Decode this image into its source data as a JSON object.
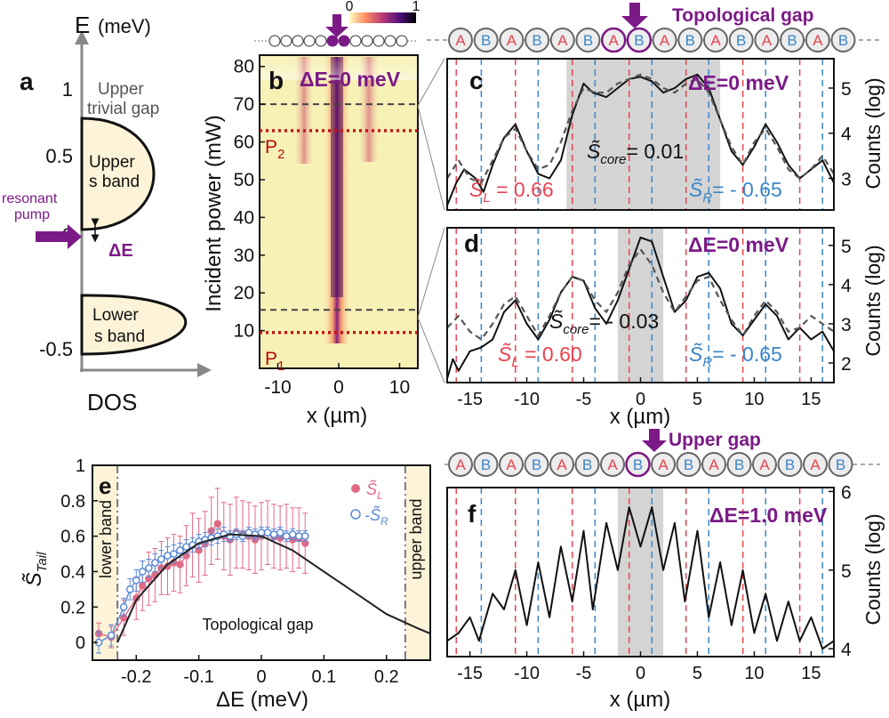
{
  "colors": {
    "purple": "#7b1a86",
    "red_site": "#e8434f",
    "blue_site": "#3a86c8",
    "band_fill": "#fdf3d8",
    "gray_box": "#d4d4d4",
    "series_L": "#e06a86",
    "series_R": "#5b8ad6",
    "heat_bg": "#f7f1b6"
  },
  "panel_a": {
    "letter": "a",
    "y_axis_label": "E",
    "y_unit": "(meV)",
    "x_axis_label": "DOS",
    "ticks": [
      "1",
      "0.5",
      "0",
      "-0.5"
    ],
    "upper_trivial_gap": [
      "Upper",
      "trivial gap"
    ],
    "upper_band": [
      "Upper",
      "s band"
    ],
    "lower_band": [
      "Lower",
      "s band"
    ],
    "pump_label": [
      "resonant",
      "pump"
    ],
    "delta_label": "ΔE",
    "chart_data": {
      "type": "diagram",
      "upper_band_meV": [
        0.22,
        0.78
      ],
      "lower_band_meV": [
        -0.48,
        -0.18
      ],
      "pump_energy_meV": 0.1
    }
  },
  "panel_b": {
    "letter": "b",
    "title": "ΔE=0 meV",
    "y_label": "Incident power (mW)",
    "x_label": "x (µm)",
    "y_ticks": [
      "10",
      "20",
      "30",
      "40",
      "50",
      "60",
      "70",
      "80"
    ],
    "x_ticks": [
      "-10",
      "0",
      "10"
    ],
    "colorbar_ticks": [
      "0",
      "1"
    ],
    "p2_label": "P",
    "p2_sub": "2",
    "p1_label": "P",
    "p1_sub": "1",
    "chart_data": {
      "type": "heatmap",
      "xlim": [
        -13,
        13
      ],
      "ylim": [
        0,
        83
      ],
      "colorbar_range": [
        0,
        1
      ],
      "P1_mW": 9.5,
      "P2_mW": 63,
      "dashed_lines_mW": [
        15.5,
        70
      ],
      "x_ticks": [
        -10,
        0,
        10
      ],
      "y_ticks": [
        10,
        20,
        30,
        40,
        50,
        60,
        70,
        80
      ]
    }
  },
  "lattice_top": {
    "labels": [
      "A",
      "B",
      "A",
      "B",
      "A",
      "B",
      "A",
      "B",
      "A",
      "B",
      "A",
      "B",
      "A",
      "B",
      "A",
      "B"
    ],
    "title": "Topological gap"
  },
  "lattice_bottom": {
    "labels": [
      "A",
      "B",
      "A",
      "B",
      "A",
      "B",
      "A",
      "B",
      "A",
      "B",
      "A",
      "B",
      "A",
      "B",
      "A",
      "B"
    ],
    "title": "Upper gap"
  },
  "panel_c": {
    "letter": "c",
    "title": "ΔE=0 meV",
    "y_label": "Counts (log)",
    "s_core": "S̃",
    "s_core_sub": "core",
    "s_core_val": "= 0.01",
    "s_L": "S̃",
    "s_L_sub": "L",
    "s_L_val": " = 0.66",
    "s_R": "S̃",
    "s_R_sub": "R",
    "s_R_val": "= - 0.65",
    "y_ticks": [
      "5",
      "4",
      "3"
    ],
    "chart_data": {
      "type": "line",
      "xlim": [
        -17,
        17
      ],
      "ylim": [
        2.3,
        5.65
      ],
      "core_region": [
        -6.5,
        7
      ],
      "series": [
        {
          "name": "experiment",
          "style": "solid",
          "x": [
            -17,
            -16.2,
            -15.5,
            -14.5,
            -13.8,
            -13,
            -12,
            -11,
            -10,
            -9,
            -8,
            -7,
            -6,
            -5,
            -4.2,
            -3,
            -2,
            -1,
            0,
            1,
            2,
            3,
            4,
            5,
            6,
            7,
            8,
            9,
            10,
            11,
            12,
            13,
            14,
            15,
            16,
            17
          ],
          "y": [
            2.4,
            2.9,
            3.2,
            3.0,
            2.7,
            3.3,
            3.9,
            4.2,
            3.6,
            3.1,
            3.0,
            3.4,
            4.4,
            5.1,
            4.9,
            4.8,
            5.0,
            5.2,
            5.25,
            5.15,
            4.9,
            5.0,
            5.2,
            5.3,
            5.0,
            4.3,
            3.6,
            3.3,
            3.7,
            4.2,
            3.8,
            3.3,
            3.0,
            3.2,
            3.4,
            2.9
          ]
        },
        {
          "name": "theory",
          "style": "dashed",
          "x": [
            -17,
            -16,
            -15,
            -14,
            -13,
            -12,
            -11,
            -10,
            -9,
            -8,
            -7,
            -6,
            -5,
            -4,
            -3,
            -2,
            -1,
            0,
            1,
            2,
            3,
            4,
            5,
            6,
            7,
            8,
            9,
            10,
            11,
            12,
            13,
            14,
            15,
            16,
            17
          ],
          "y": [
            3.0,
            3.4,
            3.0,
            2.9,
            3.4,
            3.9,
            4.1,
            3.6,
            3.2,
            3.3,
            3.8,
            4.5,
            5.0,
            4.9,
            4.9,
            5.1,
            5.2,
            5.3,
            5.2,
            5.0,
            4.9,
            5.1,
            5.2,
            4.9,
            4.3,
            3.7,
            3.3,
            3.8,
            4.1,
            3.7,
            3.2,
            3.0,
            3.2,
            3.5,
            3.1
          ]
        }
      ]
    }
  },
  "panel_d": {
    "letter": "d",
    "title": "ΔE=0 meV",
    "y_label": "Counts (log)",
    "x_label": "x (µm)",
    "s_core": "S̃",
    "s_core_sub": "core",
    "s_core_val": "= - 0.03",
    "s_L": "S̃",
    "s_L_sub": "L",
    "s_L_val": " = 0.60",
    "s_R": "S̃",
    "s_R_sub": "R",
    "s_R_val": "= - 0.65",
    "y_ticks": [
      "5",
      "4",
      "3",
      "2"
    ],
    "x_ticks": [
      "-15",
      "-10",
      "-5",
      "0",
      "5",
      "10",
      "15"
    ],
    "chart_data": {
      "type": "line",
      "xlim": [
        -17,
        17
      ],
      "ylim": [
        1.5,
        5.45
      ],
      "core_region": [
        -2,
        2
      ],
      "series": [
        {
          "name": "experiment",
          "style": "solid",
          "x": [
            -17,
            -16.5,
            -16,
            -15,
            -14,
            -13,
            -12,
            -11,
            -10,
            -9,
            -8,
            -7,
            -6,
            -5,
            -4,
            -3,
            -2,
            -1,
            0,
            1,
            2,
            3,
            4,
            5,
            6,
            7,
            8,
            9,
            10,
            11,
            12,
            13,
            14,
            15,
            16,
            17
          ],
          "y": [
            1.6,
            2.1,
            1.8,
            2.3,
            2.4,
            2.6,
            3.3,
            3.6,
            3.0,
            2.6,
            3.1,
            3.8,
            4.2,
            4.1,
            3.4,
            3.0,
            3.6,
            4.4,
            5.2,
            5.1,
            4.2,
            3.3,
            3.6,
            4.2,
            4.3,
            3.9,
            3.0,
            2.7,
            3.1,
            3.5,
            3.2,
            2.6,
            2.9,
            2.6,
            2.8,
            2.3
          ]
        },
        {
          "name": "theory",
          "style": "dashed",
          "x": [
            -17,
            -16,
            -15,
            -14,
            -13,
            -12,
            -11,
            -10,
            -9,
            -8,
            -7,
            -6,
            -5,
            -4,
            -3,
            -2,
            -1,
            0,
            1,
            2,
            3,
            4,
            5,
            6,
            7,
            8,
            9,
            10,
            11,
            12,
            13,
            14,
            15,
            16,
            17
          ],
          "y": [
            2.9,
            3.2,
            2.8,
            2.6,
            3.0,
            3.5,
            3.7,
            3.2,
            2.7,
            3.2,
            3.8,
            4.2,
            4.1,
            3.6,
            3.3,
            3.8,
            4.5,
            4.9,
            4.5,
            3.8,
            3.3,
            3.7,
            4.1,
            4.2,
            3.6,
            3.1,
            2.7,
            3.2,
            3.6,
            3.3,
            2.8,
            2.9,
            3.2,
            3.0,
            2.8
          ]
        }
      ]
    }
  },
  "panel_e": {
    "letter": "e",
    "y_label": "S̃",
    "y_sub": "Tail",
    "x_label": "ΔE (meV)",
    "gap_text": "Topological gap",
    "lower_band": "lower band",
    "upper_band": "upper band",
    "legend_L": "S̃",
    "legend_L_sub": "L",
    "legend_R": "-S̃",
    "legend_R_sub": "R",
    "y_ticks": [
      "1",
      "0.8",
      "0.6",
      "0.4",
      "0.2",
      "0"
    ],
    "x_ticks": [
      "-0.2",
      "-0.1",
      "0",
      "0.1",
      "0.2"
    ],
    "chart_data": {
      "type": "scatter",
      "xlim": [
        -0.27,
        0.27
      ],
      "ylim": [
        -0.1,
        1.0
      ],
      "band_edges": [
        -0.23,
        0.23
      ],
      "series": [
        {
          "name": "S̃_L",
          "marker": "filled",
          "x": [
            -0.26,
            -0.24,
            -0.22,
            -0.2,
            -0.19,
            -0.18,
            -0.17,
            -0.16,
            -0.15,
            -0.14,
            -0.13,
            -0.12,
            -0.11,
            -0.1,
            -0.09,
            -0.08,
            -0.07,
            -0.06,
            -0.05,
            -0.04,
            -0.03,
            -0.02,
            -0.01,
            0.0,
            0.01,
            0.02,
            0.03,
            0.04,
            0.05,
            0.06,
            0.07
          ],
          "y": [
            0.05,
            0.03,
            0.14,
            0.25,
            0.32,
            0.36,
            0.38,
            0.42,
            0.43,
            0.45,
            0.44,
            0.49,
            0.55,
            0.52,
            0.56,
            0.63,
            0.67,
            0.6,
            0.58,
            0.62,
            0.61,
            0.6,
            0.58,
            0.6,
            0.62,
            0.6,
            0.59,
            0.6,
            0.58,
            0.59,
            0.56
          ],
          "err": [
            0.06,
            0.06,
            0.1,
            0.12,
            0.14,
            0.15,
            0.15,
            0.15,
            0.16,
            0.16,
            0.16,
            0.17,
            0.18,
            0.18,
            0.18,
            0.19,
            0.2,
            0.19,
            0.2,
            0.2,
            0.19,
            0.19,
            0.19,
            0.19,
            0.18,
            0.18,
            0.18,
            0.18,
            0.18,
            0.17,
            0.17
          ]
        },
        {
          "name": "-S̃_R",
          "marker": "open",
          "x": [
            -0.26,
            -0.24,
            -0.22,
            -0.21,
            -0.2,
            -0.19,
            -0.18,
            -0.17,
            -0.16,
            -0.15,
            -0.14,
            -0.13,
            -0.12,
            -0.11,
            -0.1,
            -0.09,
            -0.08,
            -0.07,
            -0.06,
            -0.05,
            -0.04,
            -0.03,
            -0.02,
            -0.01,
            0.0,
            0.01,
            0.02,
            0.03,
            0.04,
            0.05,
            0.06,
            0.07
          ],
          "y": [
            0.0,
            0.04,
            0.2,
            0.3,
            0.35,
            0.4,
            0.42,
            0.45,
            0.47,
            0.49,
            0.5,
            0.52,
            0.54,
            0.55,
            0.57,
            0.58,
            0.59,
            0.6,
            0.61,
            0.6,
            0.61,
            0.6,
            0.62,
            0.61,
            0.62,
            0.62,
            0.61,
            0.62,
            0.6,
            0.61,
            0.6,
            0.6
          ],
          "err": [
            0.06,
            0.06,
            0.05,
            0.06,
            0.06,
            0.06,
            0.05,
            0.05,
            0.05,
            0.05,
            0.05,
            0.04,
            0.04,
            0.04,
            0.04,
            0.04,
            0.04,
            0.04,
            0.04,
            0.03,
            0.03,
            0.03,
            0.03,
            0.03,
            0.03,
            0.03,
            0.03,
            0.03,
            0.03,
            0.03,
            0.03,
            0.03
          ]
        },
        {
          "name": "theory",
          "marker": "line",
          "x": [
            -0.23,
            -0.2,
            -0.15,
            -0.1,
            -0.05,
            0.0,
            0.05,
            0.1,
            0.15,
            0.2,
            0.25,
            0.27
          ],
          "y": [
            0.0,
            0.24,
            0.44,
            0.56,
            0.61,
            0.6,
            0.52,
            0.4,
            0.28,
            0.16,
            0.08,
            0.05
          ]
        }
      ]
    }
  },
  "panel_f": {
    "letter": "f",
    "title": "ΔE=1.0 meV",
    "y_label": "Counts (log)",
    "x_label": "x (µm)",
    "y_ticks": [
      "6",
      "5",
      "4"
    ],
    "x_ticks": [
      "-15",
      "-10",
      "-5",
      "0",
      "5",
      "10",
      "15"
    ],
    "chart_data": {
      "type": "line",
      "xlim": [
        -17,
        17
      ],
      "ylim": [
        3.9,
        6.05
      ],
      "core_region": [
        -2,
        2
      ],
      "series": [
        {
          "name": "experiment",
          "style": "solid",
          "x": [
            -17,
            -16,
            -15,
            -14.2,
            -13,
            -12,
            -11,
            -10,
            -9,
            -8,
            -7,
            -6,
            -5,
            -4.2,
            -3,
            -2,
            -1,
            0,
            1,
            2,
            3,
            3.9,
            5,
            6,
            7,
            8,
            9,
            10,
            11,
            12,
            13,
            14,
            15,
            16,
            17
          ],
          "y": [
            4.1,
            4.2,
            4.4,
            4.1,
            4.7,
            4.5,
            5.0,
            4.3,
            5.1,
            4.4,
            5.3,
            4.6,
            5.5,
            4.5,
            5.6,
            5.0,
            5.8,
            5.3,
            5.8,
            5.0,
            5.6,
            4.6,
            5.5,
            4.4,
            5.1,
            4.3,
            5.0,
            4.2,
            4.7,
            4.1,
            4.6,
            4.1,
            4.4,
            4.0,
            4.1
          ]
        }
      ]
    }
  }
}
